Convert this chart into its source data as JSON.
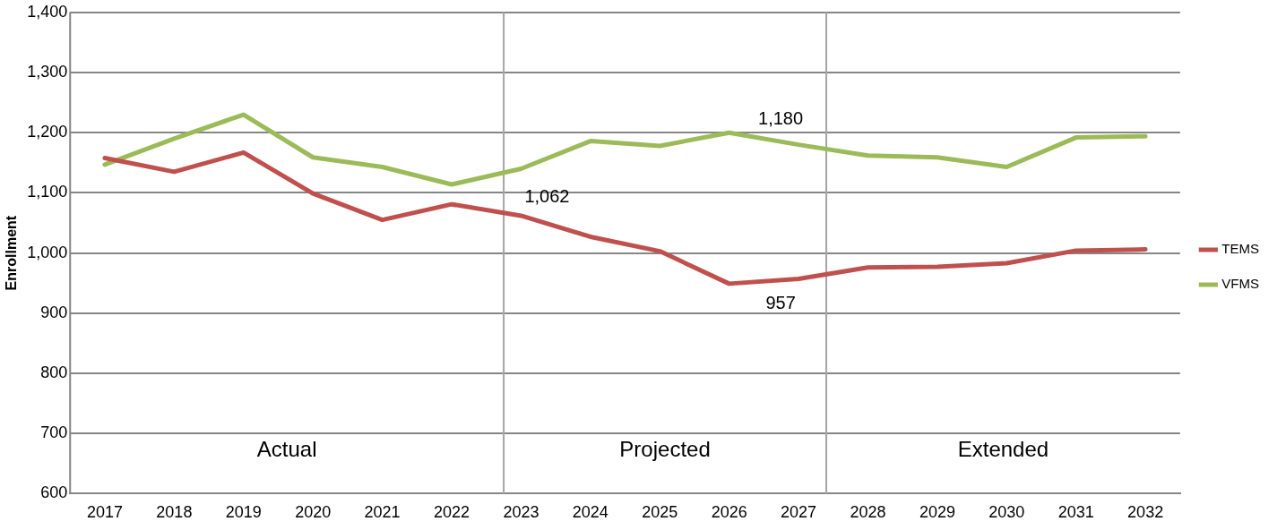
{
  "chart_data": {
    "type": "line",
    "ylabel": "Enrollment",
    "x": [
      2017,
      2018,
      2019,
      2020,
      2021,
      2022,
      2023,
      2024,
      2025,
      2026,
      2027,
      2028,
      2029,
      2030,
      2031,
      2032
    ],
    "series": [
      {
        "name": "TEMS",
        "color": "#c0504d",
        "values": [
          1158,
          1135,
          1167,
          1099,
          1055,
          1081,
          1062,
          1027,
          1003,
          949,
          957,
          976,
          977,
          983,
          1004,
          1006
        ],
        "value_labels": [
          null,
          null,
          null,
          null,
          null,
          null,
          "1,062",
          null,
          null,
          null,
          "957",
          null,
          null,
          null,
          null,
          null
        ]
      },
      {
        "name": "VFMS",
        "color": "#9bbb59",
        "values": [
          1147,
          1190,
          1230,
          1159,
          1143,
          1114,
          1140,
          1186,
          1178,
          1200,
          1180,
          1162,
          1159,
          1143,
          1192,
          1194
        ],
        "value_labels": [
          null,
          null,
          null,
          null,
          null,
          null,
          null,
          null,
          null,
          null,
          "1,180",
          null,
          null,
          null,
          null,
          null
        ]
      }
    ],
    "xlim": [
      2016.5,
      2032.5
    ],
    "xticks": [
      2017,
      2018,
      2019,
      2020,
      2021,
      2022,
      2023,
      2024,
      2025,
      2026,
      2027,
      2028,
      2029,
      2030,
      2031,
      2032
    ],
    "ylim": [
      600,
      1400
    ],
    "yticks": [
      {
        "value": 600,
        "label": "600"
      },
      {
        "value": 700,
        "label": "700"
      },
      {
        "value": 800,
        "label": "800"
      },
      {
        "value": 900,
        "label": "900"
      },
      {
        "value": 1000,
        "label": "1,000"
      },
      {
        "value": 1100,
        "label": "1,100"
      },
      {
        "value": 1200,
        "label": "1,200"
      },
      {
        "value": 1300,
        "label": "1,300"
      },
      {
        "value": 1400,
        "label": "1,400"
      }
    ],
    "ref_lines": [
      {
        "axis": "x",
        "value": 2022.75,
        "color": "#a6a6a6"
      },
      {
        "axis": "x",
        "value": 2027.4,
        "color": "#a6a6a6"
      }
    ],
    "annotations": [
      "Actual",
      "Projected",
      "Extended"
    ],
    "grid": "y",
    "legend": "right",
    "marker": "none",
    "line_style": "solid"
  }
}
